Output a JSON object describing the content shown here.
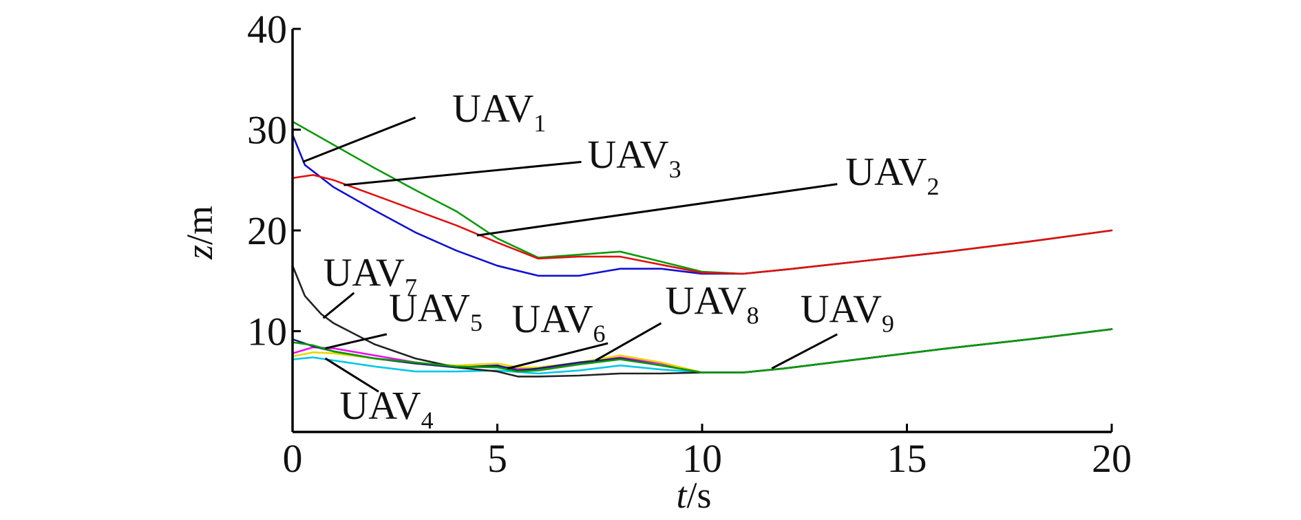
{
  "chart_data": {
    "type": "line",
    "xlabel": {
      "var": "t",
      "unit": "/s"
    },
    "ylabel": {
      "var": "z",
      "unit": "/m"
    },
    "xlim": [
      0,
      20
    ],
    "ylim": [
      0,
      40
    ],
    "xticks": [
      0,
      5,
      10,
      15,
      20
    ],
    "yticks": [
      10,
      20,
      30,
      40
    ],
    "grid": false,
    "legend": "none",
    "series": [
      {
        "name": "UAV1",
        "label_base": "UAV",
        "label_sub": "1",
        "color": "#1010d0",
        "points": [
          [
            0,
            29.5
          ],
          [
            0.3,
            26.5
          ],
          [
            1,
            24.3
          ],
          [
            2,
            22.0
          ],
          [
            3,
            19.8
          ],
          [
            4,
            18.0
          ],
          [
            5,
            16.5
          ],
          [
            6,
            15.5
          ],
          [
            7,
            15.5
          ],
          [
            8,
            16.2
          ],
          [
            9,
            16.2
          ],
          [
            10,
            15.7
          ],
          [
            11,
            15.7
          ],
          [
            12,
            16.1
          ],
          [
            14,
            17.0
          ],
          [
            16,
            17.9
          ],
          [
            18,
            18.9
          ],
          [
            20,
            20.0
          ]
        ]
      },
      {
        "name": "UAV2",
        "label_base": "UAV",
        "label_sub": "2",
        "color": "#0a9a0a",
        "points": [
          [
            0,
            30.8
          ],
          [
            1,
            28.5
          ],
          [
            2,
            26.2
          ],
          [
            3,
            24.0
          ],
          [
            4,
            21.9
          ],
          [
            5,
            19.2
          ],
          [
            6,
            17.3
          ],
          [
            7,
            17.6
          ],
          [
            8,
            17.9
          ],
          [
            9,
            16.9
          ],
          [
            10,
            15.9
          ],
          [
            11,
            15.7
          ],
          [
            12,
            16.1
          ],
          [
            14,
            17.0
          ],
          [
            16,
            17.9
          ],
          [
            18,
            18.9
          ],
          [
            20,
            20.0
          ]
        ]
      },
      {
        "name": "UAV3",
        "label_base": "UAV",
        "label_sub": "3",
        "color": "#e01010",
        "points": [
          [
            0,
            25.2
          ],
          [
            0.5,
            25.5
          ],
          [
            1,
            25.0
          ],
          [
            2,
            23.5
          ],
          [
            3,
            22.0
          ],
          [
            4,
            20.5
          ],
          [
            5,
            18.8
          ],
          [
            6,
            17.2
          ],
          [
            7,
            17.4
          ],
          [
            8,
            17.4
          ],
          [
            9,
            16.6
          ],
          [
            10,
            15.8
          ],
          [
            11,
            15.7
          ],
          [
            12,
            16.1
          ],
          [
            14,
            17.0
          ],
          [
            16,
            17.9
          ],
          [
            18,
            18.9
          ],
          [
            20,
            20.0
          ]
        ]
      },
      {
        "name": "UAV4",
        "label_base": "UAV",
        "label_sub": "4",
        "color": "#00c8e8",
        "points": [
          [
            0,
            7.2
          ],
          [
            0.5,
            7.4
          ],
          [
            1,
            7.1
          ],
          [
            2,
            6.5
          ],
          [
            3,
            6.0
          ],
          [
            4,
            6.0
          ],
          [
            5,
            6.1
          ],
          [
            6,
            5.8
          ],
          [
            7,
            6.1
          ],
          [
            8,
            6.6
          ],
          [
            9,
            6.2
          ],
          [
            10,
            5.9
          ],
          [
            11,
            5.9
          ],
          [
            12,
            6.3
          ],
          [
            14,
            7.3
          ],
          [
            16,
            8.3
          ],
          [
            18,
            9.2
          ],
          [
            20,
            10.2
          ]
        ]
      },
      {
        "name": "UAV5",
        "label_base": "UAV",
        "label_sub": "5",
        "color": "#ee10ee",
        "points": [
          [
            0,
            7.8
          ],
          [
            0.5,
            8.4
          ],
          [
            1,
            8.3
          ],
          [
            2,
            7.6
          ],
          [
            3,
            6.9
          ],
          [
            4,
            6.4
          ],
          [
            5,
            6.5
          ],
          [
            5.5,
            6.3
          ],
          [
            6,
            6.3
          ],
          [
            7,
            6.8
          ],
          [
            8,
            7.4
          ],
          [
            9,
            6.8
          ],
          [
            10,
            5.9
          ],
          [
            11,
            5.9
          ],
          [
            12,
            6.3
          ],
          [
            14,
            7.3
          ],
          [
            16,
            8.3
          ],
          [
            18,
            9.2
          ],
          [
            20,
            10.2
          ]
        ]
      },
      {
        "name": "UAV6",
        "label_base": "UAV",
        "label_sub": "6",
        "color": "#e8d800",
        "points": [
          [
            0,
            7.5
          ],
          [
            0.5,
            7.9
          ],
          [
            1,
            7.8
          ],
          [
            2,
            7.3
          ],
          [
            3,
            6.8
          ],
          [
            4,
            6.6
          ],
          [
            5,
            6.8
          ],
          [
            5.5,
            6.4
          ],
          [
            6,
            6.4
          ],
          [
            7,
            6.9
          ],
          [
            8,
            7.6
          ],
          [
            9,
            6.9
          ],
          [
            10,
            5.9
          ],
          [
            11,
            5.9
          ],
          [
            12,
            6.3
          ],
          [
            14,
            7.3
          ],
          [
            16,
            8.3
          ],
          [
            18,
            9.2
          ],
          [
            20,
            10.2
          ]
        ]
      },
      {
        "name": "UAV7",
        "label_base": "UAV",
        "label_sub": "7",
        "color": "#222222",
        "points": [
          [
            0,
            16.5
          ],
          [
            0.3,
            13.5
          ],
          [
            0.7,
            11.7
          ],
          [
            1,
            10.8
          ],
          [
            2,
            8.7
          ],
          [
            3,
            7.3
          ],
          [
            4,
            6.4
          ],
          [
            5,
            6.0
          ],
          [
            5.5,
            5.5
          ],
          [
            6,
            5.5
          ],
          [
            7,
            5.6
          ],
          [
            8,
            5.8
          ],
          [
            9,
            5.8
          ],
          [
            10,
            5.9
          ],
          [
            11,
            5.9
          ],
          [
            12,
            6.3
          ],
          [
            14,
            7.3
          ],
          [
            16,
            8.3
          ],
          [
            18,
            9.2
          ],
          [
            20,
            10.2
          ]
        ]
      },
      {
        "name": "UAV8",
        "label_base": "UAV",
        "label_sub": "8",
        "color": "#1a1a80",
        "points": [
          [
            0,
            9.2
          ],
          [
            0.5,
            8.5
          ],
          [
            1,
            8.0
          ],
          [
            2,
            7.3
          ],
          [
            3,
            6.8
          ],
          [
            4,
            6.4
          ],
          [
            5,
            6.6
          ],
          [
            5.5,
            6.1
          ],
          [
            6,
            6.3
          ],
          [
            7,
            6.9
          ],
          [
            8,
            7.3
          ],
          [
            9,
            6.6
          ],
          [
            10,
            5.9
          ],
          [
            11,
            5.9
          ],
          [
            12,
            6.3
          ],
          [
            14,
            7.3
          ],
          [
            16,
            8.3
          ],
          [
            18,
            9.2
          ],
          [
            20,
            10.2
          ]
        ]
      },
      {
        "name": "UAV9",
        "label_base": "UAV",
        "label_sub": "9",
        "color": "#0a9a0a",
        "points": [
          [
            0,
            8.9
          ],
          [
            0.5,
            8.6
          ],
          [
            1,
            8.0
          ],
          [
            2,
            7.3
          ],
          [
            3,
            6.9
          ],
          [
            4,
            6.5
          ],
          [
            5,
            6.4
          ],
          [
            5.5,
            6.0
          ],
          [
            6,
            6.1
          ],
          [
            7,
            6.7
          ],
          [
            8,
            7.2
          ],
          [
            9,
            6.6
          ],
          [
            10,
            5.9
          ],
          [
            11,
            5.9
          ],
          [
            12,
            6.3
          ],
          [
            14,
            7.3
          ],
          [
            16,
            8.3
          ],
          [
            18,
            9.2
          ],
          [
            20,
            10.2
          ]
        ]
      }
    ],
    "annotations": [
      {
        "series": "UAV1",
        "target": [
          0.25,
          26.8
        ],
        "text_at": [
          3.9,
          30.8
        ],
        "line_from": [
          3.0,
          31.2
        ]
      },
      {
        "series": "UAV3",
        "target": [
          1.25,
          24.5
        ],
        "text_at": [
          7.2,
          26.2
        ],
        "line_from": [
          7.05,
          26.8
        ]
      },
      {
        "series": "UAV2",
        "target": [
          4.5,
          19.5
        ],
        "text_at": [
          13.5,
          24.5
        ],
        "line_from": [
          13.3,
          24.6
        ]
      },
      {
        "series": "UAV7",
        "target": [
          0.75,
          11.3
        ],
        "text_at": [
          0.75,
          14.5
        ],
        "line_from": [
          1.5,
          13.8
        ]
      },
      {
        "series": "UAV5",
        "target": [
          0.8,
          8.3
        ],
        "text_at": [
          2.35,
          11.0
        ],
        "line_from": [
          2.3,
          9.7
        ]
      },
      {
        "series": "UAV6",
        "target": [
          5.25,
          6.3
        ],
        "text_at": [
          5.35,
          9.9
        ],
        "line_from": [
          7.7,
          8.8
        ]
      },
      {
        "series": "UAV8",
        "target": [
          7.4,
          7.1
        ],
        "text_at": [
          9.1,
          11.7
        ],
        "line_from": [
          9.0,
          10.8
        ]
      },
      {
        "series": "UAV9",
        "target": [
          11.7,
          6.3
        ],
        "text_at": [
          12.4,
          10.9
        ],
        "line_from": [
          13.3,
          9.7
        ]
      },
      {
        "series": "UAV4",
        "target": [
          0.8,
          7.3
        ],
        "text_at": [
          1.15,
          1.3
        ],
        "line_from": [
          2.1,
          4.0
        ]
      }
    ]
  }
}
